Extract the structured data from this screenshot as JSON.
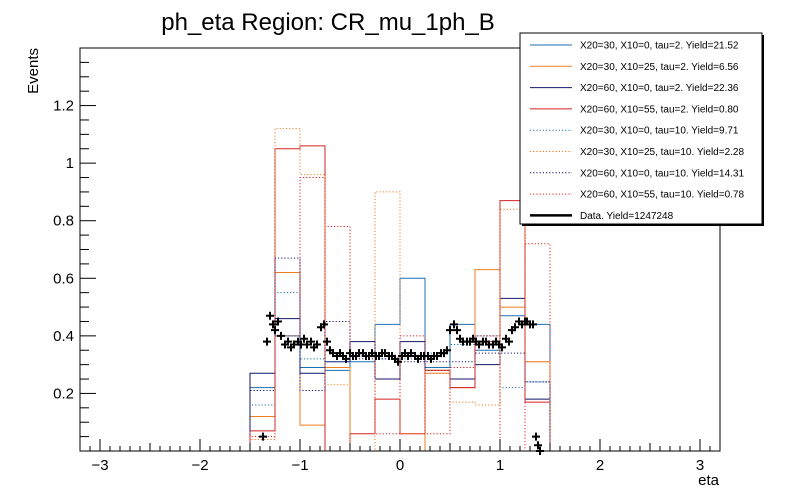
{
  "chart_data": {
    "type": "line",
    "title": "ph_eta Region: CR_mu_1ph_B",
    "xlabel": "eta",
    "ylabel": "Events",
    "xlim": [
      -3.2,
      3.2
    ],
    "ylim": [
      0,
      1.4
    ],
    "xticks": [
      -3,
      -2,
      -1,
      0,
      1,
      2,
      3
    ],
    "xtick_labels": [
      "−3",
      "−2",
      "−1",
      "0",
      "1",
      "2",
      "3"
    ],
    "yticks": [
      0.2,
      0.4,
      0.6,
      0.8,
      1.0,
      1.2
    ],
    "ytick_labels": [
      "0.2",
      "0.4",
      "0.6",
      "0.8",
      "1",
      "1.2"
    ],
    "grid": false,
    "legend_position": "top-right",
    "bin_edges": [
      -1.5,
      -1.25,
      -1.0,
      -0.75,
      -0.5,
      -0.25,
      0.0,
      0.25,
      0.5,
      0.75,
      1.0,
      1.25,
      1.5
    ],
    "series": [
      {
        "name": "X20=30, X10=0, tau=2. Yield=21.52",
        "color": "#1f6fb4",
        "style": "solid",
        "values": [
          0.22,
          0.4,
          0.29,
          0.28,
          0.31,
          0.44,
          0.6,
          0.29,
          0.44,
          0.35,
          0.47,
          0.44
        ]
      },
      {
        "name": "X20=30, X10=25, tau=2. Yield=6.56",
        "color": "#f07c20",
        "style": "solid",
        "values": [
          0.12,
          0.62,
          0.09,
          0.29,
          0.0,
          0.0,
          0.0,
          0.27,
          0.22,
          0.63,
          0.5,
          0.31
        ]
      },
      {
        "name": "X20=60, X10=0, tau=2. Yield=22.36",
        "color": "#14146e",
        "style": "solid",
        "values": [
          0.27,
          0.46,
          0.27,
          0.31,
          0.38,
          0.25,
          0.38,
          0.28,
          0.25,
          0.3,
          0.53,
          0.18
        ]
      },
      {
        "name": "X20=60, X10=55, tau=2. Yield=0.80",
        "color": "#d62020",
        "style": "solid",
        "values": [
          0.07,
          1.05,
          1.06,
          0.0,
          0.06,
          0.18,
          0.06,
          0.28,
          0.22,
          0.38,
          0.87,
          0.17
        ]
      },
      {
        "name": "X20=30, X10=0, tau=10. Yield=9.71",
        "color": "#1f6fb4",
        "style": "dotted",
        "values": [
          0.16,
          0.55,
          0.32,
          0.31,
          0.33,
          0.32,
          0.32,
          0.34,
          0.37,
          0.4,
          0.22,
          0.24
        ]
      },
      {
        "name": "X20=30, X10=25, tau=10. Yield=2.28",
        "color": "#f07c20",
        "style": "dotted",
        "values": [
          0.04,
          1.12,
          0.96,
          0.23,
          0.0,
          0.9,
          0.06,
          0.28,
          0.17,
          0.16,
          0.84,
          0.31
        ]
      },
      {
        "name": "X20=60, X10=0, tau=10. Yield=14.31",
        "color": "#14146e",
        "style": "dotted",
        "values": [
          0.21,
          0.67,
          0.21,
          0.45,
          0.32,
          0.32,
          0.31,
          0.31,
          0.31,
          0.34,
          0.34,
          0.24
        ]
      },
      {
        "name": "X20=60, X10=55, tau=10. Yield=0.78",
        "color": "#d62020",
        "style": "dotted",
        "values": [
          0.05,
          0.4,
          0.95,
          0.78,
          0.33,
          0.06,
          0.4,
          0.06,
          0.29,
          0.4,
          0.0,
          0.72
        ]
      }
    ],
    "data_series": {
      "name": "Data. Yield=1247248",
      "color": "#000000",
      "x": [
        -1.37,
        -1.33,
        -1.3,
        -1.27,
        -1.25,
        -1.22,
        -1.19,
        -1.15,
        -1.12,
        -1.09,
        -1.06,
        -1.02,
        -0.99,
        -0.96,
        -0.93,
        -0.89,
        -0.86,
        -0.83,
        -0.79,
        -0.76,
        -0.73,
        -0.7,
        -0.67,
        -0.63,
        -0.6,
        -0.57,
        -0.54,
        -0.5,
        -0.47,
        -0.44,
        -0.41,
        -0.37,
        -0.34,
        -0.31,
        -0.28,
        -0.24,
        -0.21,
        -0.18,
        -0.15,
        -0.11,
        -0.08,
        -0.05,
        -0.02,
        0.02,
        0.05,
        0.08,
        0.11,
        0.15,
        0.18,
        0.21,
        0.24,
        0.28,
        0.31,
        0.34,
        0.37,
        0.41,
        0.44,
        0.47,
        0.5,
        0.54,
        0.57,
        0.6,
        0.63,
        0.67,
        0.7,
        0.73,
        0.76,
        0.79,
        0.83,
        0.86,
        0.89,
        0.93,
        0.96,
        0.99,
        1.02,
        1.06,
        1.09,
        1.12,
        1.15,
        1.19,
        1.22,
        1.25,
        1.27,
        1.3,
        1.33,
        1.36,
        1.38,
        1.4
      ],
      "y": [
        0.05,
        0.38,
        0.47,
        0.44,
        0.42,
        0.45,
        0.4,
        0.37,
        0.38,
        0.36,
        0.37,
        0.38,
        0.37,
        0.39,
        0.37,
        0.38,
        0.36,
        0.37,
        0.43,
        0.44,
        0.38,
        0.35,
        0.34,
        0.33,
        0.34,
        0.33,
        0.32,
        0.34,
        0.33,
        0.33,
        0.34,
        0.34,
        0.33,
        0.33,
        0.34,
        0.33,
        0.33,
        0.34,
        0.34,
        0.33,
        0.33,
        0.32,
        0.31,
        0.33,
        0.34,
        0.33,
        0.34,
        0.33,
        0.32,
        0.33,
        0.33,
        0.33,
        0.32,
        0.33,
        0.33,
        0.34,
        0.34,
        0.35,
        0.42,
        0.44,
        0.42,
        0.39,
        0.38,
        0.38,
        0.38,
        0.39,
        0.38,
        0.37,
        0.38,
        0.38,
        0.37,
        0.37,
        0.38,
        0.37,
        0.36,
        0.39,
        0.38,
        0.42,
        0.43,
        0.45,
        0.44,
        0.45,
        0.45,
        0.44,
        0.44,
        0.05,
        0.02,
        0.0
      ]
    }
  }
}
